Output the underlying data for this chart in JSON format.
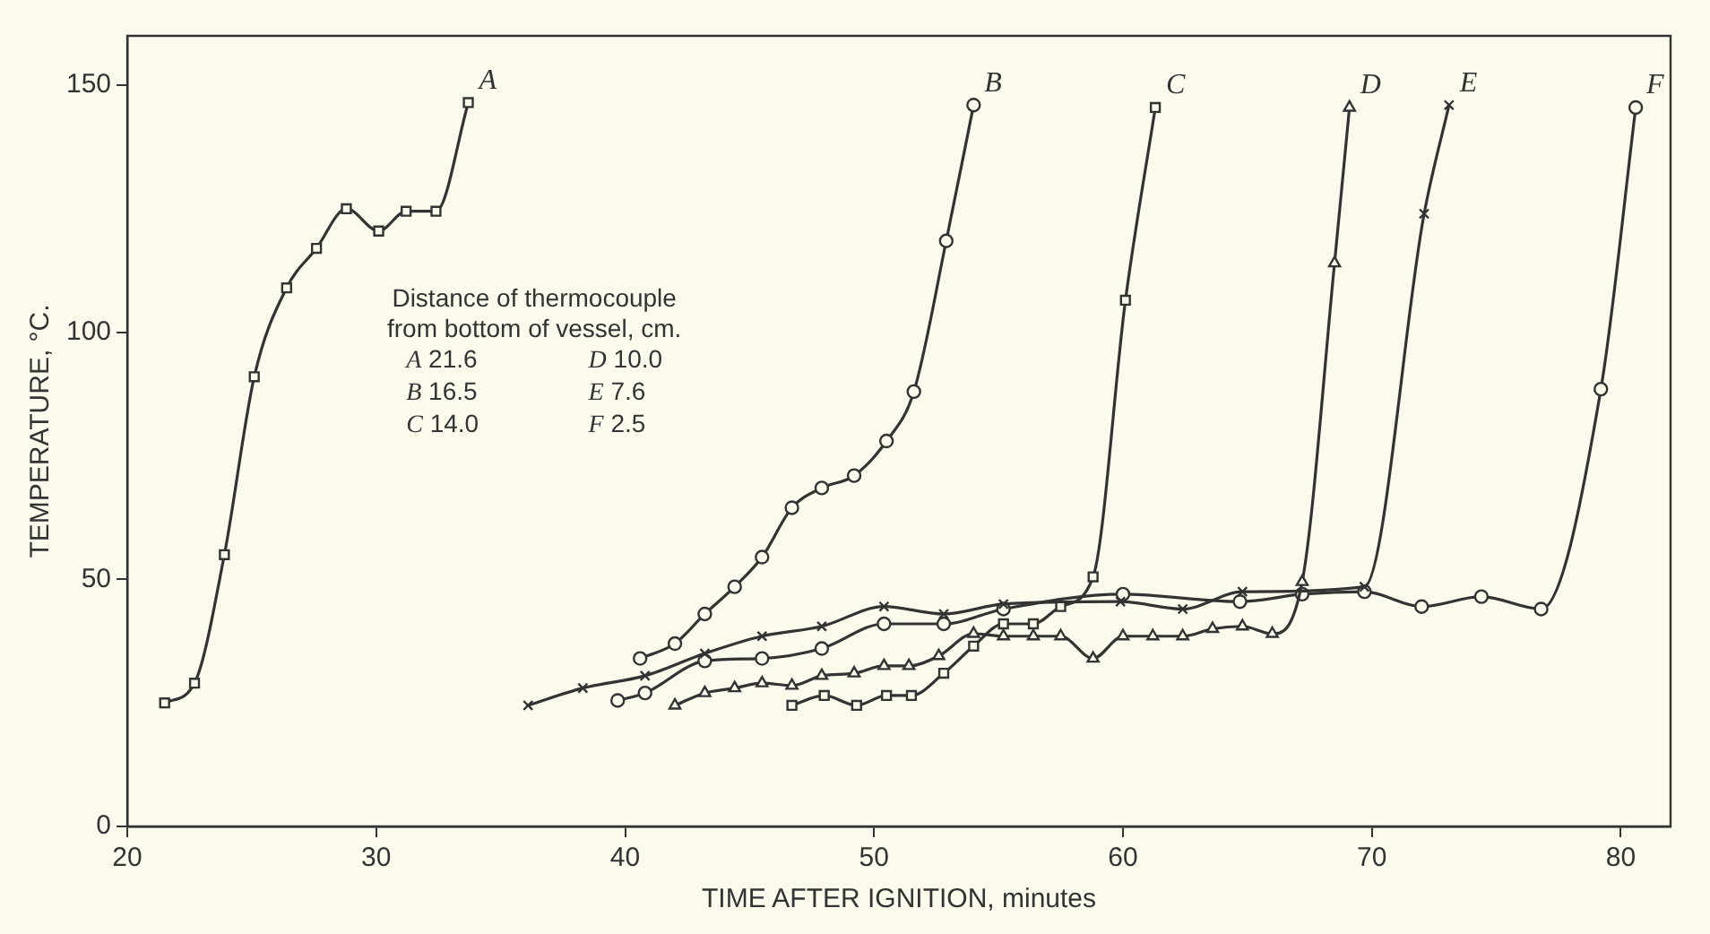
{
  "chart_data": {
    "type": "line",
    "xlabel": "TIME AFTER IGNITION, minutes",
    "ylabel": "TEMPERATURE, °C.",
    "xlim": [
      20,
      82
    ],
    "xticks": [
      20,
      30,
      40,
      50,
      60,
      70,
      80
    ],
    "ylim": [
      0,
      160
    ],
    "yticks": [
      0,
      50,
      100,
      150
    ],
    "grid": false,
    "legend": false,
    "line_style": "solid",
    "annotations": [
      "Distance of thermocouple\nfrom bottom of vessel, cm.",
      "A 21.6",
      "B 16.5",
      "C 14.0",
      "D 10.0",
      "E 7.6",
      "F 2.5"
    ],
    "series": [
      {
        "name": "A",
        "color": "#333333",
        "marker": "square",
        "x": [
          21.5,
          22.7,
          23.9,
          25.1,
          26.4,
          27.6,
          28.8,
          30.1,
          31.2,
          32.4,
          33.7
        ],
        "values": [
          25,
          29,
          55,
          91,
          109,
          117,
          125,
          120.5,
          124.5,
          124.5,
          146.5
        ]
      },
      {
        "name": "B",
        "color": "#333333",
        "marker": "circle",
        "x": [
          40.6,
          42.0,
          43.2,
          44.4,
          45.5,
          46.7,
          47.9,
          49.2,
          50.5,
          51.6,
          52.9,
          54.0
        ],
        "values": [
          34,
          37,
          43,
          48.5,
          54.5,
          64.5,
          68.5,
          71,
          78,
          88,
          118.5,
          146
        ]
      },
      {
        "name": "C",
        "color": "#333333",
        "marker": "square",
        "x": [
          46.7,
          48.0,
          49.3,
          50.5,
          51.5,
          52.8,
          54.0,
          55.2,
          56.4,
          57.5,
          58.8,
          60.1,
          61.3
        ],
        "values": [
          24.5,
          26.5,
          24.5,
          26.5,
          26.5,
          31,
          36.5,
          41,
          41,
          44.5,
          50.5,
          106.5,
          145.5
        ]
      },
      {
        "name": "D",
        "color": "#333333",
        "marker": "triangle",
        "x": [
          42.0,
          43.2,
          44.4,
          45.5,
          46.7,
          47.9,
          49.2,
          50.4,
          51.4,
          52.6,
          54.0,
          55.2,
          56.4,
          57.5,
          58.8,
          60.0,
          61.2,
          62.4,
          63.6,
          64.8,
          66.0,
          67.2,
          68.5,
          69.1
        ],
        "values": [
          24.5,
          27,
          28,
          29,
          28.5,
          30.5,
          31,
          32.5,
          32.5,
          34.5,
          39,
          38.5,
          38.5,
          38.5,
          34,
          38.5,
          38.5,
          38.5,
          40,
          40.5,
          39,
          49.5,
          114,
          145.5
        ]
      },
      {
        "name": "E",
        "color": "#333333",
        "marker": "cross",
        "x": [
          36.1,
          38.3,
          40.8,
          43.2,
          45.5,
          47.9,
          50.4,
          52.8,
          55.2,
          59.9,
          62.4,
          64.8,
          69.7,
          72.1,
          73.1
        ],
        "values": [
          24.5,
          28,
          30.5,
          35,
          38.5,
          40.5,
          44.5,
          43,
          45,
          45.5,
          44,
          47.5,
          48.5,
          124,
          146
        ]
      },
      {
        "name": "F",
        "color": "#333333",
        "marker": "circle",
        "x": [
          39.7,
          40.8,
          43.2,
          45.5,
          47.9,
          50.4,
          52.8,
          55.2,
          60.0,
          64.7,
          67.2,
          69.7,
          72.0,
          74.4,
          76.8,
          79.2,
          80.6
        ],
        "values": [
          25.5,
          27,
          33.5,
          34,
          36,
          41,
          41,
          44,
          47,
          45.5,
          47,
          47.5,
          44.5,
          46.5,
          44,
          88.5,
          145.5
        ]
      }
    ]
  }
}
